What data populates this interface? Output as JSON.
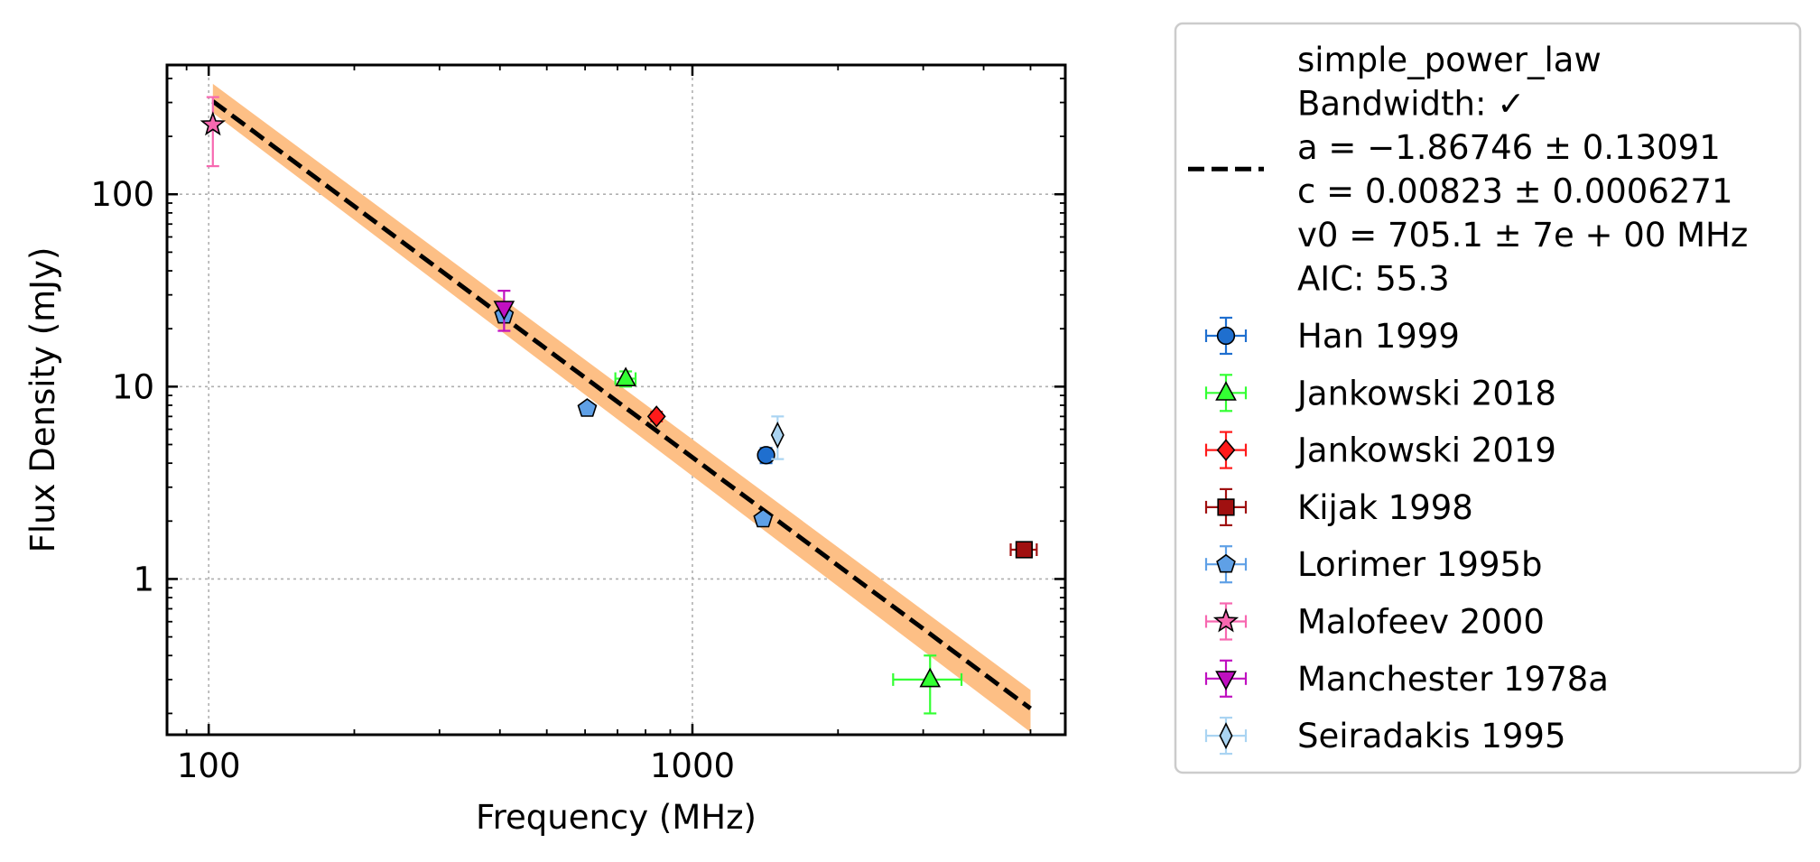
{
  "chart_data": {
    "type": "scatter",
    "title": "",
    "xlabel": "Frequency (MHz)",
    "ylabel": "Flux Density (mJy)",
    "xscale": "log",
    "yscale": "log",
    "xlim": [
      82,
      5900
    ],
    "ylim": [
      0.155,
      470
    ],
    "x_ticks": [
      {
        "value": 100,
        "label": "100"
      },
      {
        "value": 1000,
        "label": "1000"
      }
    ],
    "y_ticks": [
      {
        "value": 1,
        "label": "1"
      },
      {
        "value": 10,
        "label": "10"
      },
      {
        "value": 100,
        "label": "100"
      }
    ],
    "grid": true,
    "legend_position": "outside-right",
    "fit": {
      "model": "simple_power_law",
      "label_lines": [
        "simple_power_law",
        "Bandwidth: ✓",
        "a = −1.86746 ± 0.13091",
        "c = 0.00823 ± 0.0006271",
        "v0 = 705.1 ± 7e + 00 MHz",
        "AIC: 55.3"
      ],
      "a": -1.86746,
      "c": 0.00823,
      "v0": 705.1,
      "x_range": [
        102,
        5000
      ],
      "band_low": [
        [
          102,
          265
        ],
        [
          5000,
          0.16
        ]
      ],
      "band_high": [
        [
          102,
          375
        ],
        [
          5000,
          0.265
        ]
      ],
      "line_color": "#000000",
      "band_color": "#fdbf85"
    },
    "series": [
      {
        "name": "Han 1999",
        "marker": "circle",
        "color": "#1f6fcf",
        "points": [
          {
            "x": 1420,
            "y": 4.4,
            "yerr": 0.4
          }
        ]
      },
      {
        "name": "Jankowski 2018",
        "marker": "triangle-up",
        "color": "#33ff33",
        "points": [
          {
            "x": 728,
            "y": 11.0,
            "yerr": 1.0,
            "xerr": 35
          },
          {
            "x": 3100,
            "y": 0.3,
            "yerr": 0.1,
            "xerr": 500
          }
        ]
      },
      {
        "name": "Jankowski 2019",
        "marker": "diamond",
        "color": "#ff1a1a",
        "points": [
          {
            "x": 843,
            "y": 7.0,
            "yerr": 0.4
          }
        ]
      },
      {
        "name": "Kijak 1998",
        "marker": "square",
        "color": "#a01010",
        "points": [
          {
            "x": 4850,
            "y": 1.42,
            "yerr": 0.08,
            "xerr": 300
          }
        ]
      },
      {
        "name": "Lorimer 1995b",
        "marker": "pentagon",
        "color": "#5fa0e6",
        "points": [
          {
            "x": 408,
            "y": 23.5,
            "yerr": 1.5
          },
          {
            "x": 606,
            "y": 7.7,
            "yerr": 0.4
          },
          {
            "x": 1400,
            "y": 2.05,
            "yerr": 0.1
          }
        ]
      },
      {
        "name": "Malofeev 2000",
        "marker": "star",
        "color": "#f768b0",
        "points": [
          {
            "x": 102,
            "y": 230,
            "yerr": 90
          }
        ]
      },
      {
        "name": "Manchester 1978a",
        "marker": "triangle-down",
        "color": "#c010c0",
        "points": [
          {
            "x": 408,
            "y": 25.5,
            "yerr": 6
          }
        ]
      },
      {
        "name": "Seiradakis 1995",
        "marker": "thin-diamond",
        "color": "#aad4f2",
        "points": [
          {
            "x": 1500,
            "y": 5.6,
            "yerr": 1.4
          }
        ]
      }
    ]
  }
}
